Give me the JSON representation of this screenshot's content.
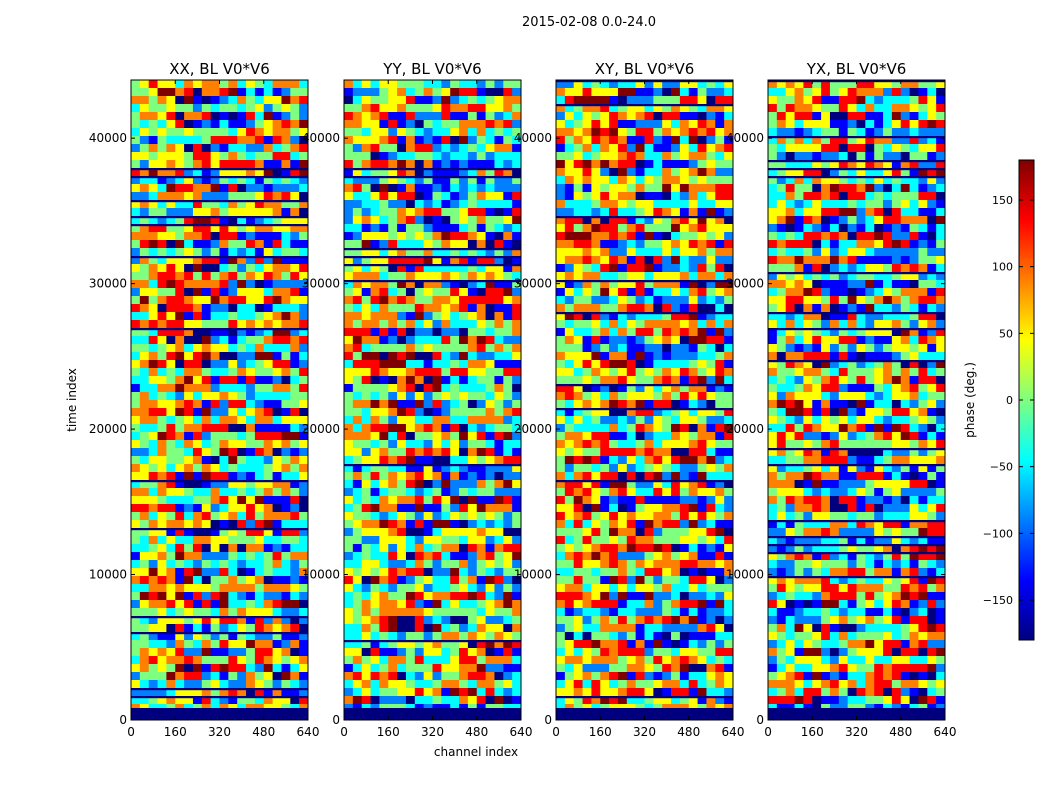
{
  "chart_data": {
    "type": "heatmap",
    "suptitle": "2015-02-08 0.0-24.0",
    "xlabel": "channel index",
    "ylabel": "time index",
    "xlim": [
      0,
      640
    ],
    "ylim": [
      0,
      44000
    ],
    "x_ticks": [
      0,
      160,
      320,
      480,
      640
    ],
    "y_ticks": [
      0,
      10000,
      20000,
      30000,
      40000
    ],
    "panels": [
      {
        "title": "XX, BL V0*V6"
      },
      {
        "title": "YY, BL V0*V6"
      },
      {
        "title": "XY, BL V0*V6"
      },
      {
        "title": "YX, BL V0*V6"
      }
    ],
    "colorbar": {
      "label": "phase (deg.)",
      "range": [
        -180,
        180
      ],
      "ticks": [
        -150,
        -100,
        -50,
        0,
        50,
        100,
        150
      ],
      "colormap": [
        "#00007f",
        "#0000ff",
        "#007fff",
        "#00ffff",
        "#7fff7f",
        "#ffff00",
        "#ff7f00",
        "#ff0000",
        "#7f0000"
      ]
    }
  }
}
